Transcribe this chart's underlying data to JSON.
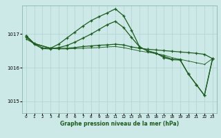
{
  "title": "Graphe pression niveau de la mer (hPa)",
  "bg_color": "#cce9e7",
  "grid_color": "#aed4d2",
  "line_color": "#1a5c1a",
  "ylim": [
    1014.65,
    1017.85
  ],
  "yticks": [
    1015,
    1016,
    1017
  ],
  "xlim": [
    -0.5,
    23.5
  ],
  "xticks": [
    0,
    1,
    2,
    3,
    4,
    5,
    6,
    7,
    8,
    9,
    10,
    11,
    12,
    13,
    14,
    15,
    16,
    17,
    18,
    19,
    20,
    21,
    22,
    23
  ],
  "s1_x": [
    0,
    1,
    3,
    4,
    5,
    6,
    7,
    8,
    9,
    10,
    11,
    12,
    13,
    14,
    15,
    16,
    17,
    18,
    19,
    20,
    21,
    22,
    23
  ],
  "s1_y": [
    1016.95,
    1016.72,
    1016.58,
    1016.58,
    1016.58,
    1016.6,
    1016.63,
    1016.65,
    1016.67,
    1016.68,
    1016.7,
    1016.68,
    1016.62,
    1016.58,
    1016.55,
    1016.53,
    1016.51,
    1016.49,
    1016.47,
    1016.45,
    1016.43,
    1016.4,
    1016.27
  ],
  "s2_x": [
    0,
    1,
    3,
    4,
    5,
    6,
    7,
    8,
    9,
    10,
    11,
    12,
    13,
    14,
    15,
    16,
    17,
    18,
    19,
    20,
    21,
    22,
    23
  ],
  "s2_y": [
    1016.95,
    1016.72,
    1016.58,
    1016.7,
    1016.88,
    1017.06,
    1017.24,
    1017.4,
    1017.52,
    1017.63,
    1017.75,
    1017.55,
    1017.12,
    1016.62,
    1016.5,
    1016.44,
    1016.3,
    1016.24,
    1016.23,
    1015.82,
    1015.5,
    1015.18,
    1016.27
  ],
  "s3_x": [
    0,
    1,
    2,
    3,
    4,
    5,
    6,
    7,
    8,
    9,
    10,
    11,
    12,
    13,
    14,
    15,
    16,
    17,
    18,
    19,
    20,
    21,
    22,
    23
  ],
  "s3_y": [
    1016.85,
    1016.72,
    1016.6,
    1016.57,
    1016.56,
    1016.56,
    1016.57,
    1016.58,
    1016.59,
    1016.6,
    1016.62,
    1016.63,
    1016.6,
    1016.55,
    1016.5,
    1016.46,
    1016.42,
    1016.38,
    1016.3,
    1016.25,
    1016.2,
    1016.15,
    1016.1,
    1016.27
  ],
  "s4_x": [
    0,
    1,
    2,
    3,
    4,
    5,
    6,
    7,
    8,
    9,
    10,
    11,
    12,
    13,
    14,
    15,
    16,
    17,
    18,
    19,
    20,
    21,
    22,
    23
  ],
  "s4_y": [
    1016.9,
    1016.7,
    1016.57,
    1016.56,
    1016.6,
    1016.66,
    1016.76,
    1016.88,
    1017.0,
    1017.14,
    1017.28,
    1017.38,
    1017.2,
    1016.9,
    1016.62,
    1016.5,
    1016.43,
    1016.34,
    1016.25,
    1016.24,
    1015.82,
    1015.5,
    1015.18,
    1016.27
  ]
}
